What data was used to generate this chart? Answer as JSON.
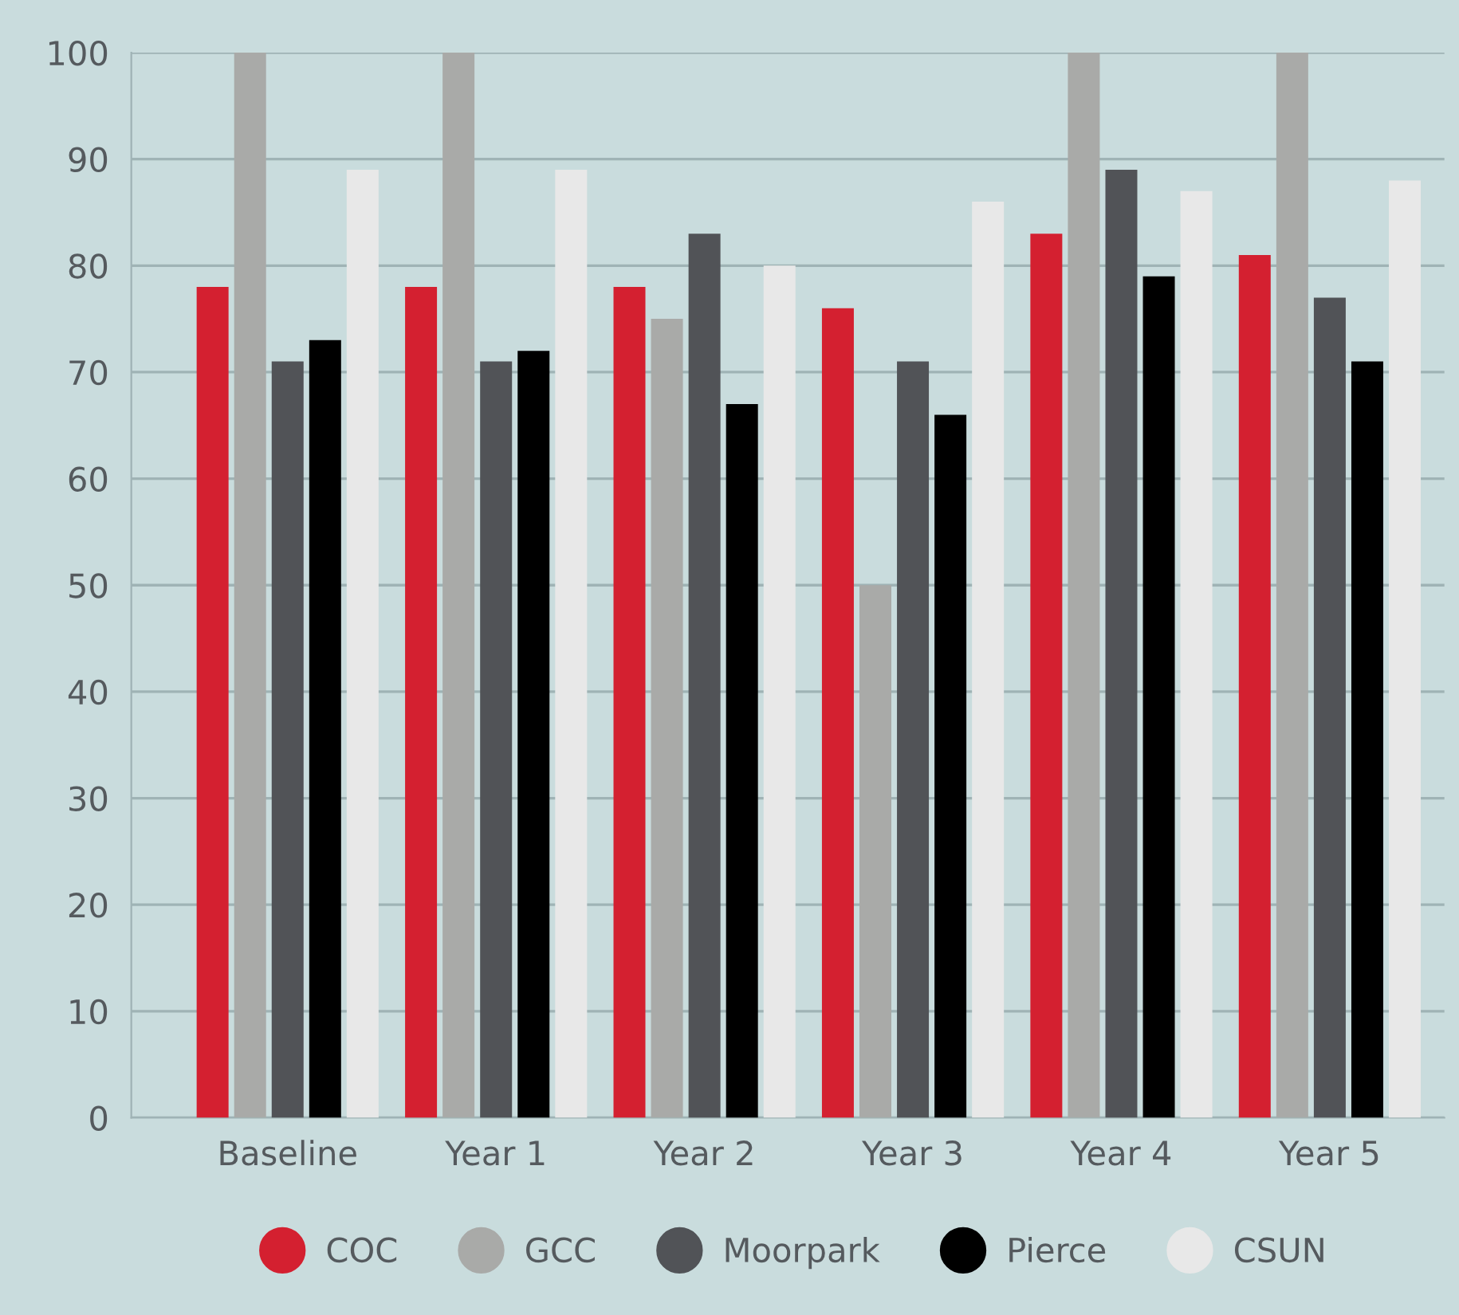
{
  "chart_data": {
    "type": "bar",
    "categories": [
      "Baseline",
      "Year 1",
      "Year 2",
      "Year 3",
      "Year 4",
      "Year 5"
    ],
    "series": [
      {
        "name": "COC",
        "color": "#d42030",
        "values": [
          78,
          78,
          78,
          76,
          83,
          81
        ]
      },
      {
        "name": "GCC",
        "color": "#a9aaa8",
        "values": [
          100,
          100,
          75,
          50,
          100,
          100
        ]
      },
      {
        "name": "Moorpark",
        "color": "#515357",
        "values": [
          71,
          71,
          83,
          71,
          89,
          77
        ]
      },
      {
        "name": "Pierce",
        "color": "#000000",
        "values": [
          73,
          72,
          67,
          66,
          79,
          71
        ]
      },
      {
        "name": "CSUN",
        "color": "#e8e8e8",
        "values": [
          89,
          89,
          80,
          86,
          87,
          88
        ]
      }
    ],
    "ylim": [
      0,
      100
    ],
    "yticks": [
      0,
      10,
      20,
      30,
      40,
      50,
      60,
      70,
      80,
      90,
      100
    ],
    "grid": "y",
    "legend": "bottom"
  }
}
